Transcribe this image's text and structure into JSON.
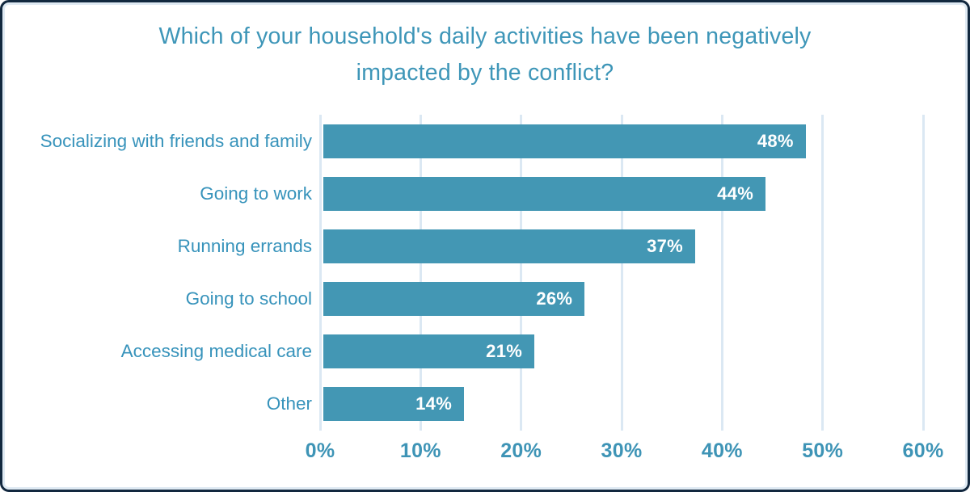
{
  "frame": {
    "background": "#ffffff",
    "border_color": "#12283f",
    "inner_line_color": "#dfeaf3"
  },
  "chart_data": {
    "type": "bar",
    "orientation": "horizontal",
    "title": "Which of your household's daily activities have been negatively impacted by the conflict?",
    "title_lines": [
      "Which of your household's daily activities have been negatively",
      "impacted by the conflict?"
    ],
    "categories": [
      "Socializing with friends and family",
      "Going to work",
      "Running errands",
      "Going to school",
      "Accessing medical care",
      "Other"
    ],
    "values": [
      48,
      44,
      37,
      26,
      21,
      14
    ],
    "value_labels": [
      "48%",
      "44%",
      "37%",
      "26%",
      "21%",
      "14%"
    ],
    "x_ticks": [
      "0%",
      "10%",
      "20%",
      "30%",
      "40%",
      "50%",
      "60%"
    ],
    "x_tick_values": [
      0,
      10,
      20,
      30,
      40,
      50,
      60
    ],
    "xlim": [
      0,
      60
    ],
    "grid": true,
    "legend": "none",
    "xlabel": "",
    "ylabel": "",
    "colors": {
      "bar": "#4397b4",
      "title": "#3e96b8",
      "category_label": "#3793bb",
      "tick_label": "#3e94b6",
      "value_label": "#ffffff",
      "gridline": "#dbe8f3"
    }
  }
}
